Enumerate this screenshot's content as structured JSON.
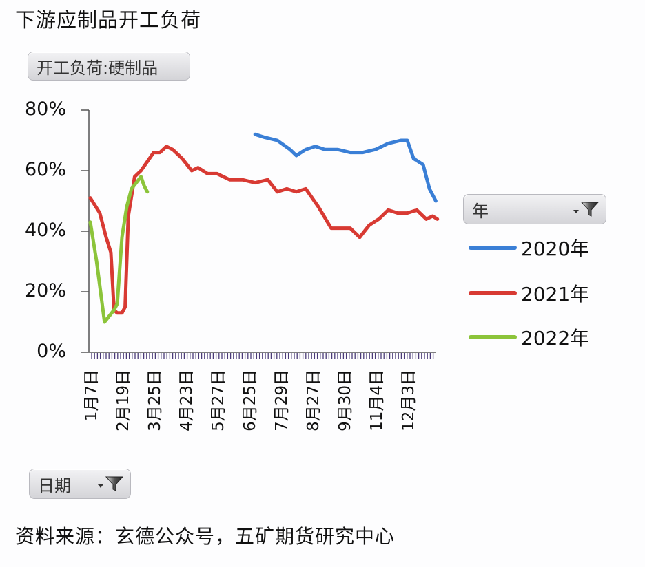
{
  "title": "下游应制品开工负荷",
  "filter_pill": {
    "label": "开工负荷:硬制品"
  },
  "year_filter": {
    "label": "年",
    "icon": "filter-funnel-icon"
  },
  "date_filter": {
    "label": "日期",
    "icon": "filter-funnel-icon"
  },
  "source": "资料来源：玄德公众号，五矿期货研究中心",
  "colors": {
    "2020": "#3a7fd6",
    "2021": "#d83a33",
    "2022": "#8cc43a"
  },
  "legend": [
    {
      "label": "2020年",
      "color": "#3a7fd6"
    },
    {
      "label": "2021年",
      "color": "#d83a33"
    },
    {
      "label": "2022年",
      "color": "#8cc43a"
    }
  ],
  "y_ticks": [
    "80%",
    "60%",
    "40%",
    "20%",
    "0%"
  ],
  "x_ticks": [
    "1月7日",
    "2月19日",
    "3月25日",
    "4月23日",
    "5月27日",
    "6月25日",
    "7月29日",
    "8月27日",
    "9月30日",
    "11月4日",
    "12月3日"
  ],
  "chart_data": {
    "type": "line",
    "title": "下游应制品开工负荷",
    "subtitle": "开工负荷:硬制品",
    "xlabel": "日期",
    "ylabel": "",
    "ylim": [
      0,
      80
    ],
    "y_unit": "%",
    "grid": false,
    "legend_position": "right",
    "categories": [
      "1月7日",
      "2月19日",
      "3月25日",
      "4月23日",
      "5月27日",
      "6月25日",
      "7月29日",
      "8月27日",
      "9月30日",
      "11月4日",
      "12月3日"
    ],
    "series": [
      {
        "name": "2020年",
        "x_index": [
          5.2,
          5.5,
          5.9,
          6.3,
          6.5,
          6.8,
          7.1,
          7.4,
          7.8,
          8.2,
          8.6,
          9.0,
          9.4,
          9.8,
          10.0,
          10.2,
          10.5,
          10.7,
          10.9
        ],
        "values": [
          72,
          71,
          70,
          67,
          65,
          67,
          68,
          67,
          67,
          66,
          66,
          67,
          69,
          70,
          70,
          64,
          62,
          54,
          50
        ]
      },
      {
        "name": "2021年",
        "x_index": [
          0,
          0.3,
          0.5,
          0.65,
          0.75,
          0.85,
          1.0,
          1.1,
          1.2,
          1.4,
          1.6,
          1.8,
          2.0,
          2.2,
          2.4,
          2.6,
          2.9,
          3.2,
          3.4,
          3.7,
          4.0,
          4.4,
          4.8,
          5.2,
          5.6,
          5.9,
          6.2,
          6.5,
          6.8,
          7.2,
          7.6,
          7.9,
          8.2,
          8.5,
          8.8,
          9.1,
          9.4,
          9.7,
          10.0,
          10.3,
          10.6,
          10.8,
          10.95
        ],
        "values": [
          51,
          46,
          38,
          33,
          14,
          13,
          13,
          15,
          45,
          58,
          60,
          63,
          66,
          66,
          68,
          67,
          64,
          60,
          61,
          59,
          59,
          57,
          57,
          56,
          57,
          53,
          54,
          53,
          54,
          48,
          41,
          41,
          41,
          38,
          42,
          44,
          47,
          46,
          46,
          47,
          44,
          45,
          44
        ]
      },
      {
        "name": "2022年",
        "x_index": [
          0,
          0.2,
          0.45,
          0.6,
          0.75,
          0.85,
          1.0,
          1.15,
          1.3,
          1.45,
          1.6,
          1.7,
          1.8
        ],
        "values": [
          43,
          30,
          10,
          12,
          14,
          16,
          38,
          48,
          54,
          56,
          58,
          55,
          53
        ]
      }
    ]
  }
}
